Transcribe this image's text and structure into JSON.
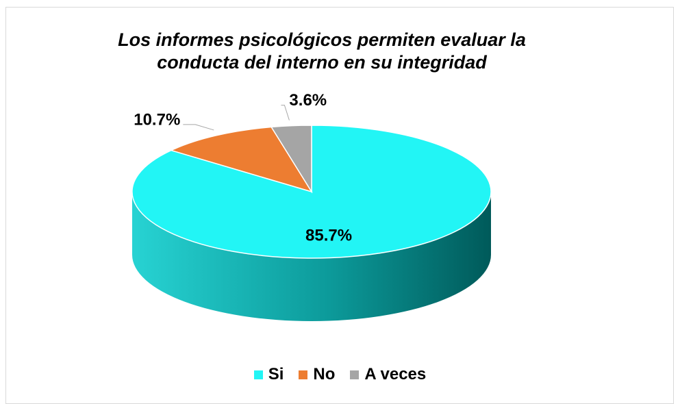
{
  "chart_data": {
    "type": "pie",
    "title": "Los informes psicológicos permiten evaluar la conducta del interno en su integridad",
    "categories": [
      "Si",
      "No",
      "A veces"
    ],
    "values": [
      85.7,
      10.7,
      3.6
    ],
    "value_labels": [
      "85.7%",
      "10.7%",
      "3.6%"
    ],
    "colors": [
      "#22f5f5",
      "#ed7d31",
      "#a5a5a5"
    ],
    "legend": "bottom"
  }
}
